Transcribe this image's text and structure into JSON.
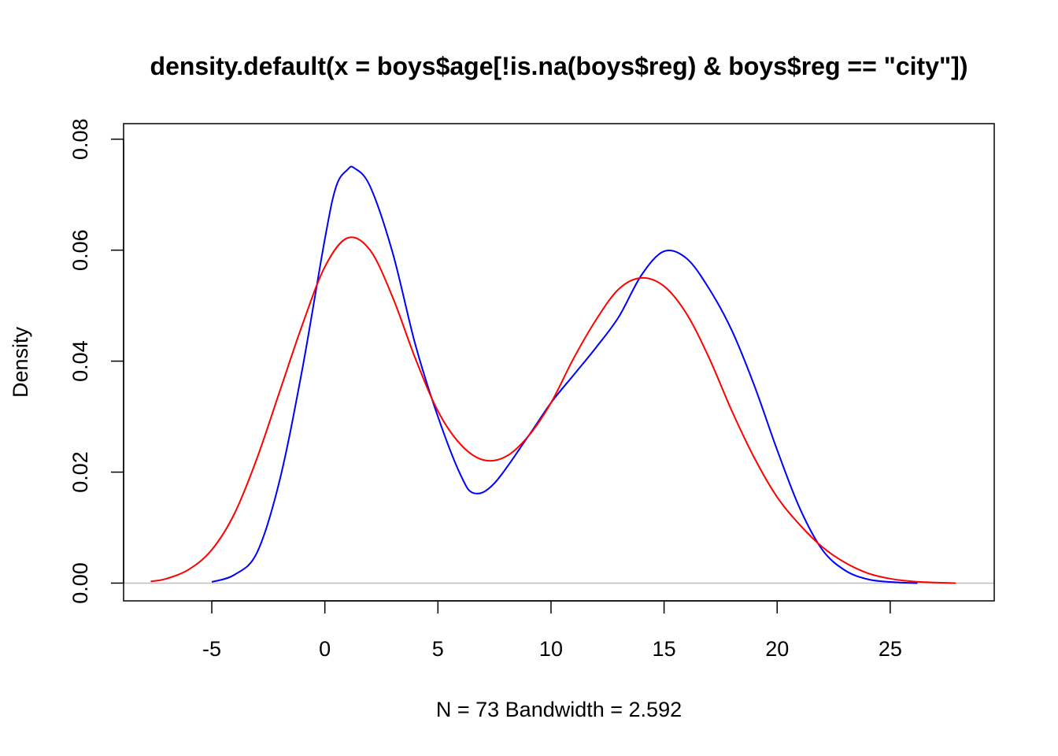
{
  "chart_data": {
    "type": "line",
    "title": "density.default(x = boys$age[!is.na(boys$reg) & boys$reg == \"city\"])",
    "xlabel": "N = 73   Bandwidth = 2.592",
    "ylabel": "Density",
    "xlim": [
      -8.9,
      29.6
    ],
    "ylim": [
      -0.0032,
      0.0828
    ],
    "x_ticks": [
      -5,
      0,
      5,
      10,
      15,
      20,
      25
    ],
    "x_tick_labels": [
      "-5",
      "0",
      "5",
      "10",
      "15",
      "20",
      "25"
    ],
    "y_ticks": [
      0,
      0.02,
      0.04,
      0.06,
      0.08
    ],
    "y_tick_labels": [
      "0.00",
      "0.02",
      "0.04",
      "0.06",
      "0.08"
    ],
    "grid": false,
    "baseline": 0,
    "series": [
      {
        "color": "#0000ff",
        "x": [
          -5.0,
          -4.0,
          -3.0,
          -2.0,
          -1.0,
          0.0,
          0.5,
          1.0,
          1.3,
          2.0,
          3.0,
          4.0,
          5.0,
          6.0,
          6.6,
          7.5,
          9.0,
          10.0,
          11.0,
          12.0,
          13.0,
          14.0,
          15.0,
          16.0,
          17.0,
          18.0,
          19.0,
          20.0,
          21.0,
          22.0,
          23.0,
          24.0,
          25.0,
          26.2
        ],
        "y": [
          0.0002,
          0.0015,
          0.0055,
          0.0185,
          0.0385,
          0.062,
          0.0715,
          0.0745,
          0.0748,
          0.0715,
          0.0595,
          0.043,
          0.03,
          0.0195,
          0.0162,
          0.018,
          0.0265,
          0.0325,
          0.0375,
          0.0425,
          0.048,
          0.0555,
          0.0598,
          0.0585,
          0.053,
          0.0455,
          0.0355,
          0.024,
          0.0135,
          0.006,
          0.0023,
          0.0007,
          0.0002,
          0.0
        ]
      },
      {
        "color": "#ff0000",
        "x": [
          -7.7,
          -7.0,
          -6.0,
          -5.0,
          -4.0,
          -3.0,
          -2.0,
          -1.0,
          0.0,
          1.0,
          2.0,
          3.0,
          4.0,
          5.0,
          6.0,
          7.0,
          8.0,
          9.0,
          10.0,
          11.0,
          12.0,
          13.0,
          14.0,
          15.0,
          16.0,
          17.0,
          18.0,
          19.0,
          20.0,
          21.0,
          22.0,
          23.0,
          24.0,
          25.0,
          26.0,
          27.0,
          27.9
        ],
        "y": [
          0.0003,
          0.0008,
          0.0025,
          0.006,
          0.0125,
          0.0225,
          0.0345,
          0.0465,
          0.057,
          0.0622,
          0.06,
          0.0515,
          0.0405,
          0.031,
          0.025,
          0.0222,
          0.0228,
          0.0265,
          0.0325,
          0.0405,
          0.0475,
          0.053,
          0.055,
          0.0535,
          0.0485,
          0.0405,
          0.031,
          0.0225,
          0.0155,
          0.0105,
          0.0065,
          0.0037,
          0.0018,
          0.0008,
          0.0003,
          0.0001,
          0.0
        ]
      }
    ]
  }
}
